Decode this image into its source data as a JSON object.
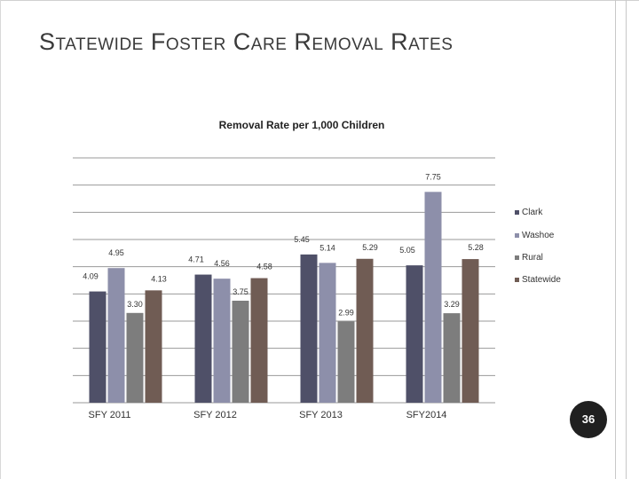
{
  "slide": {
    "title": "Statewide Foster Care Removal Rates",
    "page_number": "36"
  },
  "chart_data": {
    "type": "bar",
    "title": "Removal Rate per 1,000 Children",
    "categories": [
      "SFY 2011",
      "SFY 2012",
      "SFY 2013",
      "SFY2014"
    ],
    "series": [
      {
        "name": "Clark",
        "color": "#4f5068",
        "values": [
          4.09,
          4.71,
          5.45,
          5.05
        ]
      },
      {
        "name": "Washoe",
        "color": "#8d8faa",
        "values": [
          4.95,
          4.56,
          5.14,
          7.75
        ]
      },
      {
        "name": "Rural",
        "color": "#7d7d7d",
        "values": [
          3.3,
          3.75,
          2.99,
          3.29
        ]
      },
      {
        "name": "Statewide",
        "color": "#705c54",
        "values": [
          4.13,
          4.58,
          5.29,
          5.28
        ]
      }
    ],
    "value_labels": [
      [
        "4.09",
        "4.95",
        "3.30",
        "4.13"
      ],
      [
        "4.71",
        "4.56",
        "3.75",
        "4.58"
      ],
      [
        "5.45",
        "5.14",
        "2.99",
        "5.29"
      ],
      [
        "5.05",
        "7.75",
        "3.29",
        "5.28"
      ]
    ],
    "ylim": [
      0,
      9
    ],
    "grid": true,
    "legend_position": "right"
  }
}
